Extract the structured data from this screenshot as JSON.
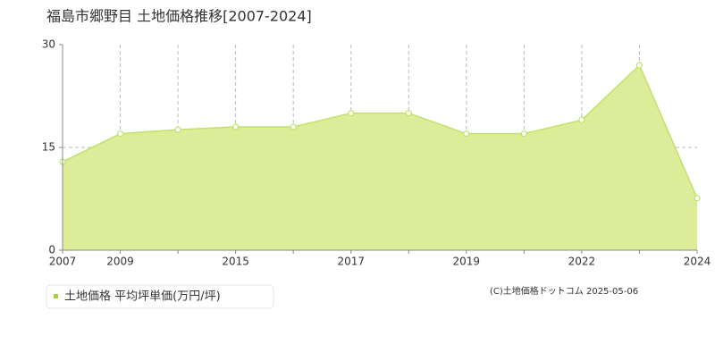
{
  "chart_data": {
    "type": "area",
    "title": "福島市郷野目 土地価格推移[2007-2024]",
    "categories": [
      "2007",
      "2009",
      null,
      "2015",
      null,
      "2017",
      null,
      "2019",
      null,
      "2022",
      null,
      "2024"
    ],
    "series": [
      {
        "name": "土地価格 平均坪単価(万円/坪)",
        "color": "#c5e06a",
        "fill": "#dcec98",
        "legend_color": "#a8d23c",
        "values": [
          12.9,
          17.0,
          17.6,
          18.0,
          18.0,
          20.0,
          20.0,
          17.0,
          17.0,
          19.0,
          27.0,
          7.6
        ]
      }
    ],
    "ylim": [
      0,
      30
    ],
    "yticks": [
      0,
      15,
      30
    ],
    "grid": true,
    "source": "(C)土地価格ドットコム 2025-05-06"
  }
}
